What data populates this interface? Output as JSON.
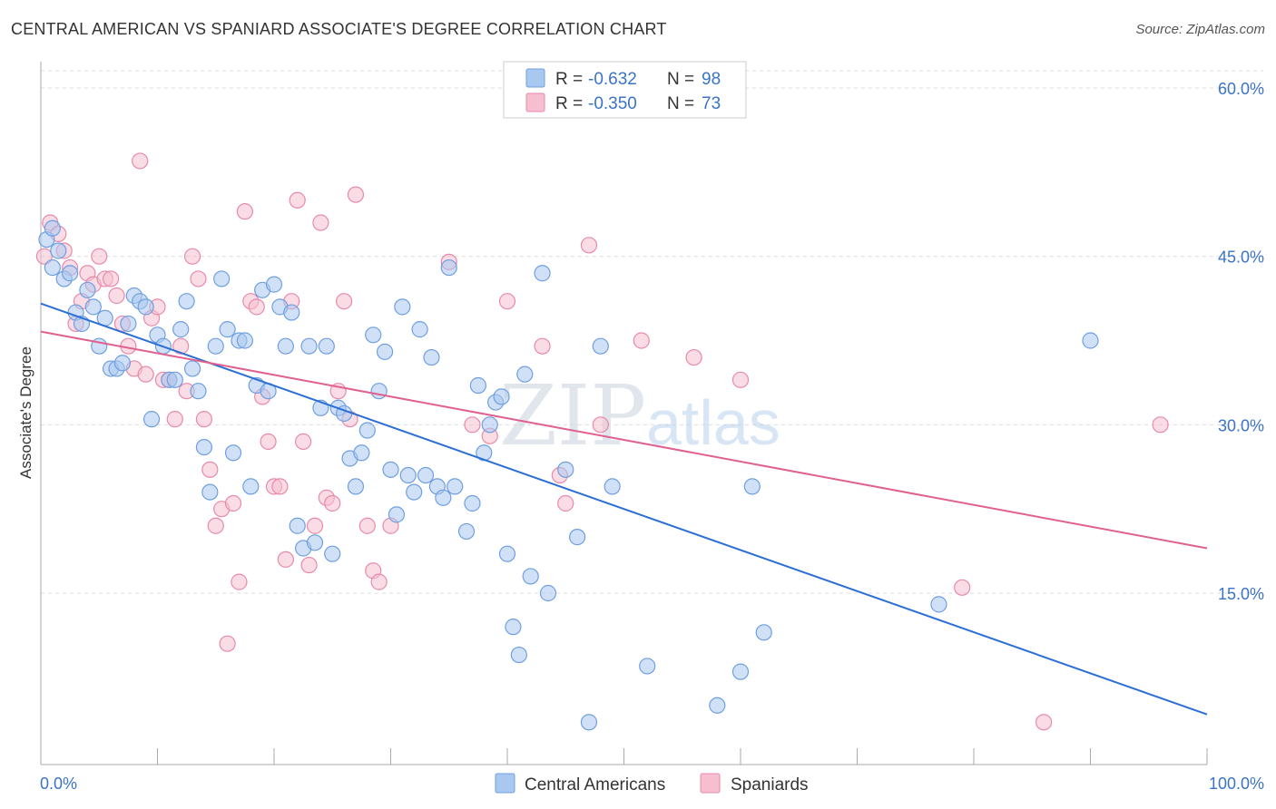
{
  "title": "CENTRAL AMERICAN VS SPANIARD ASSOCIATE'S DEGREE CORRELATION CHART",
  "source": "Source: ZipAtlas.com",
  "watermark": {
    "zip": "ZIP",
    "atlas": "atlas"
  },
  "colors": {
    "blue_fill": "#a9c8f0",
    "blue_stroke": "#6f9fe0",
    "blue_line": "#2b6fd6",
    "pink_fill": "#f6bfd0",
    "pink_stroke": "#e88aab",
    "pink_line": "#e06090",
    "grid": "#dddddd",
    "tick_text": "#3a73c8"
  },
  "legend_top": {
    "rows": [
      {
        "r_label": "R =",
        "r_value": "-0.632",
        "n_label": "N =",
        "n_value": "98"
      },
      {
        "r_label": "R =",
        "r_value": "-0.350",
        "n_label": "N =",
        "n_value": "73"
      }
    ]
  },
  "legend_bottom": [
    "Central Americans",
    "Spaniards"
  ],
  "chart_data": {
    "type": "scatter",
    "ylabel": "Associate's Degree",
    "x_tick_labels": [
      "0.0%",
      "100.0%"
    ],
    "y_tick_labels": [
      "60.0%",
      "45.0%",
      "30.0%",
      "15.0%"
    ],
    "y_ticks": [
      60,
      45,
      30,
      15
    ],
    "xlim": [
      0,
      100
    ],
    "ylim": [
      0,
      63
    ],
    "grid": true,
    "legend_placement": "top-center",
    "series": [
      {
        "name": "Central Americans",
        "color": "#a9c8f0",
        "trend": {
          "x": [
            0,
            100
          ],
          "y": [
            40.8,
            4.2
          ]
        },
        "points": [
          [
            0.5,
            46.5
          ],
          [
            1.0,
            47.5
          ],
          [
            1.5,
            45.5
          ],
          [
            2.0,
            43.0
          ],
          [
            2.5,
            43.5
          ],
          [
            3.0,
            40.0
          ],
          [
            3.5,
            39.0
          ],
          [
            4.0,
            42.0
          ],
          [
            4.5,
            40.5
          ],
          [
            5.0,
            37.0
          ],
          [
            5.5,
            39.5
          ],
          [
            6.0,
            35.0
          ],
          [
            6.5,
            35.0
          ],
          [
            7.0,
            35.5
          ],
          [
            7.5,
            39.0
          ],
          [
            8.0,
            41.5
          ],
          [
            8.5,
            41.0
          ],
          [
            9.0,
            40.5
          ],
          [
            9.5,
            30.5
          ],
          [
            10.0,
            38.0
          ],
          [
            10.5,
            37.0
          ],
          [
            11.0,
            34.0
          ],
          [
            11.5,
            34.0
          ],
          [
            12.0,
            38.5
          ],
          [
            12.5,
            41.0
          ],
          [
            13.0,
            35.0
          ],
          [
            13.5,
            33.0
          ],
          [
            14.0,
            28.0
          ],
          [
            14.5,
            24.0
          ],
          [
            15.0,
            37.0
          ],
          [
            15.5,
            43.0
          ],
          [
            16.0,
            38.5
          ],
          [
            16.5,
            27.5
          ],
          [
            17.0,
            37.5
          ],
          [
            17.5,
            37.5
          ],
          [
            18.0,
            24.5
          ],
          [
            18.5,
            33.5
          ],
          [
            19.0,
            42.0
          ],
          [
            19.5,
            33.0
          ],
          [
            20.0,
            42.5
          ],
          [
            20.5,
            40.5
          ],
          [
            21.0,
            37.0
          ],
          [
            21.5,
            40.0
          ],
          [
            22.0,
            21.0
          ],
          [
            22.5,
            19.0
          ],
          [
            23.0,
            37.0
          ],
          [
            23.5,
            19.5
          ],
          [
            24.0,
            31.5
          ],
          [
            24.5,
            37.0
          ],
          [
            25.0,
            18.5
          ],
          [
            25.5,
            31.5
          ],
          [
            26.0,
            31.0
          ],
          [
            26.5,
            27.0
          ],
          [
            27.0,
            24.5
          ],
          [
            27.5,
            27.5
          ],
          [
            28.0,
            29.5
          ],
          [
            28.5,
            38.0
          ],
          [
            29.0,
            33.0
          ],
          [
            29.5,
            36.5
          ],
          [
            30.0,
            26.0
          ],
          [
            30.5,
            22.0
          ],
          [
            31.0,
            40.5
          ],
          [
            31.5,
            25.5
          ],
          [
            32.0,
            24.0
          ],
          [
            32.5,
            38.5
          ],
          [
            33.0,
            25.5
          ],
          [
            33.5,
            36.0
          ],
          [
            34.0,
            24.5
          ],
          [
            34.5,
            23.5
          ],
          [
            35.0,
            44.0
          ],
          [
            35.5,
            24.5
          ],
          [
            36.5,
            20.5
          ],
          [
            37.0,
            23.0
          ],
          [
            37.5,
            33.5
          ],
          [
            38.0,
            27.5
          ],
          [
            38.5,
            30.0
          ],
          [
            39.0,
            32.0
          ],
          [
            39.5,
            32.5
          ],
          [
            40.0,
            18.5
          ],
          [
            40.5,
            12.0
          ],
          [
            41.0,
            9.5
          ],
          [
            41.5,
            34.5
          ],
          [
            42.0,
            16.5
          ],
          [
            43.0,
            43.5
          ],
          [
            43.5,
            15.0
          ],
          [
            45.0,
            26.0
          ],
          [
            46.0,
            20.0
          ],
          [
            47.0,
            3.5
          ],
          [
            48.0,
            37.0
          ],
          [
            49.0,
            24.5
          ],
          [
            52.0,
            8.5
          ],
          [
            58.0,
            5.0
          ],
          [
            60.0,
            8.0
          ],
          [
            61.0,
            24.5
          ],
          [
            62.0,
            11.5
          ],
          [
            77.0,
            14.0
          ],
          [
            90.0,
            37.5
          ],
          [
            1.0,
            44.0
          ]
        ]
      },
      {
        "name": "Spaniards",
        "color": "#f6bfd0",
        "trend": {
          "x": [
            0,
            100
          ],
          "y": [
            38.3,
            19.0
          ]
        },
        "points": [
          [
            0.3,
            45.0
          ],
          [
            0.8,
            48.0
          ],
          [
            1.5,
            47.0
          ],
          [
            2.0,
            45.5
          ],
          [
            2.5,
            44.0
          ],
          [
            3.0,
            39.0
          ],
          [
            3.5,
            41.0
          ],
          [
            4.0,
            43.5
          ],
          [
            4.5,
            42.5
          ],
          [
            5.0,
            45.0
          ],
          [
            5.5,
            43.0
          ],
          [
            6.0,
            43.0
          ],
          [
            6.5,
            41.5
          ],
          [
            7.0,
            39.0
          ],
          [
            7.5,
            37.0
          ],
          [
            8.0,
            35.0
          ],
          [
            8.5,
            53.5
          ],
          [
            9.0,
            34.5
          ],
          [
            9.5,
            39.5
          ],
          [
            10.0,
            40.5
          ],
          [
            10.5,
            34.0
          ],
          [
            11.0,
            34.0
          ],
          [
            11.5,
            30.5
          ],
          [
            12.0,
            37.0
          ],
          [
            12.5,
            33.0
          ],
          [
            13.0,
            45.0
          ],
          [
            13.5,
            43.0
          ],
          [
            14.0,
            30.5
          ],
          [
            14.5,
            26.0
          ],
          [
            15.0,
            21.0
          ],
          [
            15.5,
            22.5
          ],
          [
            16.0,
            10.5
          ],
          [
            16.5,
            23.0
          ],
          [
            17.0,
            16.0
          ],
          [
            17.5,
            49.0
          ],
          [
            18.0,
            41.0
          ],
          [
            18.5,
            40.5
          ],
          [
            19.0,
            32.5
          ],
          [
            19.5,
            28.5
          ],
          [
            20.0,
            24.5
          ],
          [
            20.5,
            24.5
          ],
          [
            21.0,
            18.0
          ],
          [
            21.5,
            41.0
          ],
          [
            22.0,
            50.0
          ],
          [
            22.5,
            28.5
          ],
          [
            23.0,
            17.5
          ],
          [
            23.5,
            21.0
          ],
          [
            24.0,
            48.0
          ],
          [
            24.5,
            23.5
          ],
          [
            25.0,
            23.0
          ],
          [
            25.5,
            33.0
          ],
          [
            26.0,
            41.0
          ],
          [
            26.5,
            30.5
          ],
          [
            27.0,
            50.5
          ],
          [
            28.0,
            21.0
          ],
          [
            28.5,
            17.0
          ],
          [
            29.0,
            16.0
          ],
          [
            30.0,
            21.0
          ],
          [
            35.0,
            44.5
          ],
          [
            37.0,
            30.0
          ],
          [
            38.5,
            29.0
          ],
          [
            40.0,
            41.0
          ],
          [
            43.0,
            37.0
          ],
          [
            44.5,
            25.5
          ],
          [
            45.0,
            23.0
          ],
          [
            47.0,
            46.0
          ],
          [
            48.0,
            30.0
          ],
          [
            51.5,
            37.5
          ],
          [
            56.0,
            36.0
          ],
          [
            60.0,
            34.0
          ],
          [
            79.0,
            15.5
          ],
          [
            86.0,
            3.5
          ],
          [
            96.0,
            30.0
          ]
        ]
      }
    ]
  }
}
